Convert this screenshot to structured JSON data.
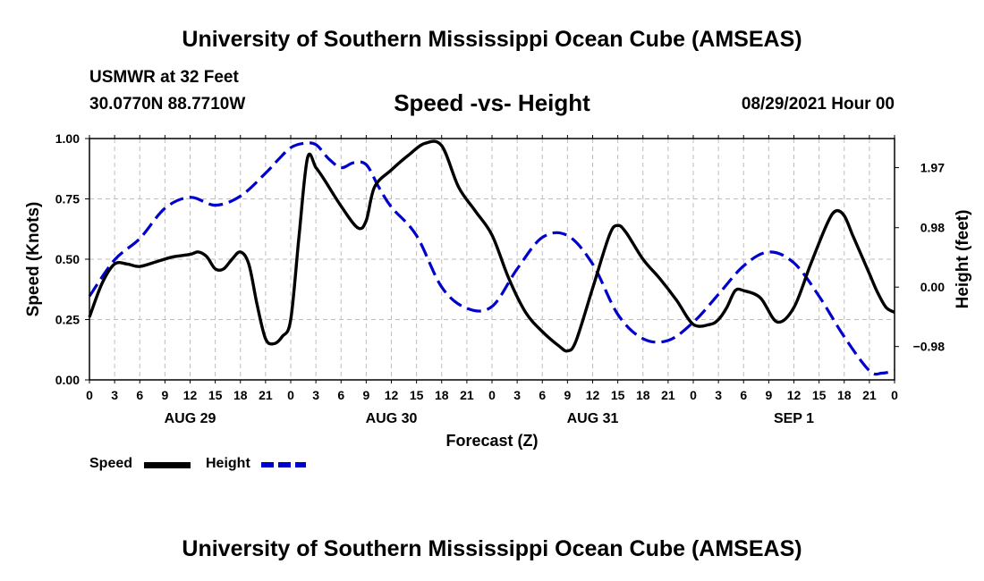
{
  "header": {
    "top_title": "University of Southern Mississippi Ocean Cube (AMSEAS)"
  },
  "station": {
    "name": "USMWR at 32 Feet",
    "coords": "30.0770N  88.7710W"
  },
  "run": {
    "datetime": "08/29/2021 Hour 00"
  },
  "footer": {
    "bottom_title": "University of Southern Mississippi Ocean Cube (AMSEAS)"
  },
  "legend": {
    "items": [
      {
        "label": "Speed",
        "color": "#000000",
        "dash": "solid"
      },
      {
        "label": "Height",
        "color": "#0000cc",
        "dash": "dashed"
      }
    ]
  },
  "chart_data": {
    "type": "line",
    "title": "Speed -vs- Height",
    "xlabel": "Forecast (Z)",
    "ylabel": "Speed (Knots)",
    "y2label": "Height (feet)",
    "xlim": [
      0,
      96
    ],
    "ylim": [
      0,
      1.0
    ],
    "y2lim": [
      -1.53,
      2.45
    ],
    "grid": true,
    "x_tick_values": [
      0,
      3,
      6,
      9,
      12,
      15,
      18,
      21,
      24,
      27,
      30,
      33,
      36,
      39,
      42,
      45,
      48,
      51,
      54,
      57,
      60,
      63,
      66,
      69,
      72,
      75,
      78,
      81,
      84,
      87,
      90,
      93,
      96
    ],
    "x_tick_labels": [
      "0",
      "3",
      "6",
      "9",
      "12",
      "15",
      "18",
      "21",
      "0",
      "3",
      "6",
      "9",
      "12",
      "15",
      "18",
      "21",
      "0",
      "3",
      "6",
      "9",
      "12",
      "15",
      "18",
      "21",
      "0",
      "3",
      "6",
      "9",
      "12",
      "15",
      "18",
      "21",
      "0"
    ],
    "day_labels": [
      {
        "label": "AUG 29",
        "x": 12
      },
      {
        "label": "AUG 30",
        "x": 36
      },
      {
        "label": "AUG 31",
        "x": 60
      },
      {
        "label": "SEP 1",
        "x": 84
      }
    ],
    "y_ticks": [
      {
        "value": 0.0,
        "label": "0.00"
      },
      {
        "value": 0.25,
        "label": "0.25"
      },
      {
        "value": 0.5,
        "label": "0.50"
      },
      {
        "value": 0.75,
        "label": "0.75"
      },
      {
        "value": 1.0,
        "label": "1.00"
      }
    ],
    "y2_ticks": [
      {
        "value": 1.97,
        "label": "1.97"
      },
      {
        "value": 0.98,
        "label": "0.98"
      },
      {
        "value": 0.0,
        "label": "0.00"
      },
      {
        "value": -0.98,
        "label": "−0.98"
      }
    ],
    "series": [
      {
        "name": "Speed",
        "axis": "left",
        "color": "#000000",
        "dash": "solid",
        "x": [
          0,
          1.5,
          3,
          4.5,
          6,
          8,
          10,
          12,
          13,
          14,
          15,
          16,
          17,
          18,
          19,
          20,
          21,
          22,
          23,
          24,
          25,
          26,
          27,
          28,
          30,
          32,
          33,
          34,
          36,
          38,
          40,
          42,
          44,
          46,
          48,
          50,
          52,
          54,
          56,
          57,
          58,
          60,
          62,
          63,
          64,
          66,
          68,
          70,
          72,
          74,
          75,
          76,
          77,
          78,
          80,
          82,
          84,
          86,
          88,
          89,
          90,
          91,
          92,
          93,
          94,
          95,
          96
        ],
        "values": [
          0.26,
          0.4,
          0.48,
          0.48,
          0.47,
          0.49,
          0.51,
          0.52,
          0.53,
          0.51,
          0.46,
          0.46,
          0.5,
          0.53,
          0.48,
          0.31,
          0.17,
          0.15,
          0.18,
          0.25,
          0.6,
          0.92,
          0.88,
          0.83,
          0.72,
          0.63,
          0.66,
          0.8,
          0.87,
          0.93,
          0.98,
          0.97,
          0.8,
          0.7,
          0.6,
          0.42,
          0.28,
          0.2,
          0.14,
          0.12,
          0.16,
          0.38,
          0.6,
          0.64,
          0.61,
          0.5,
          0.42,
          0.33,
          0.23,
          0.23,
          0.25,
          0.3,
          0.37,
          0.37,
          0.34,
          0.24,
          0.3,
          0.48,
          0.65,
          0.7,
          0.68,
          0.6,
          0.52,
          0.44,
          0.36,
          0.3,
          0.28
        ]
      },
      {
        "name": "Height",
        "axis": "right",
        "color": "#0000cc",
        "dash": "dashed",
        "x": [
          0,
          3,
          6,
          9,
          12,
          15,
          18,
          21,
          22.5,
          24,
          25.5,
          27,
          28.5,
          30,
          31.5,
          33,
          34.5,
          36,
          39,
          42,
          45,
          48,
          51,
          54,
          57,
          60,
          63,
          66,
          69,
          72,
          75,
          78,
          81,
          84,
          87,
          90,
          93,
          94.5,
          96
        ],
        "values": [
          -0.15,
          0.45,
          0.8,
          1.3,
          1.48,
          1.35,
          1.5,
          1.88,
          2.1,
          2.3,
          2.37,
          2.35,
          2.12,
          1.97,
          2.05,
          2.02,
          1.65,
          1.32,
          0.85,
          0.0,
          -0.35,
          -0.32,
          0.3,
          0.82,
          0.85,
          0.38,
          -0.45,
          -0.85,
          -0.88,
          -0.58,
          -0.12,
          0.35,
          0.58,
          0.4,
          -0.15,
          -0.82,
          -1.38,
          -1.42,
          -1.38
        ]
      }
    ]
  }
}
